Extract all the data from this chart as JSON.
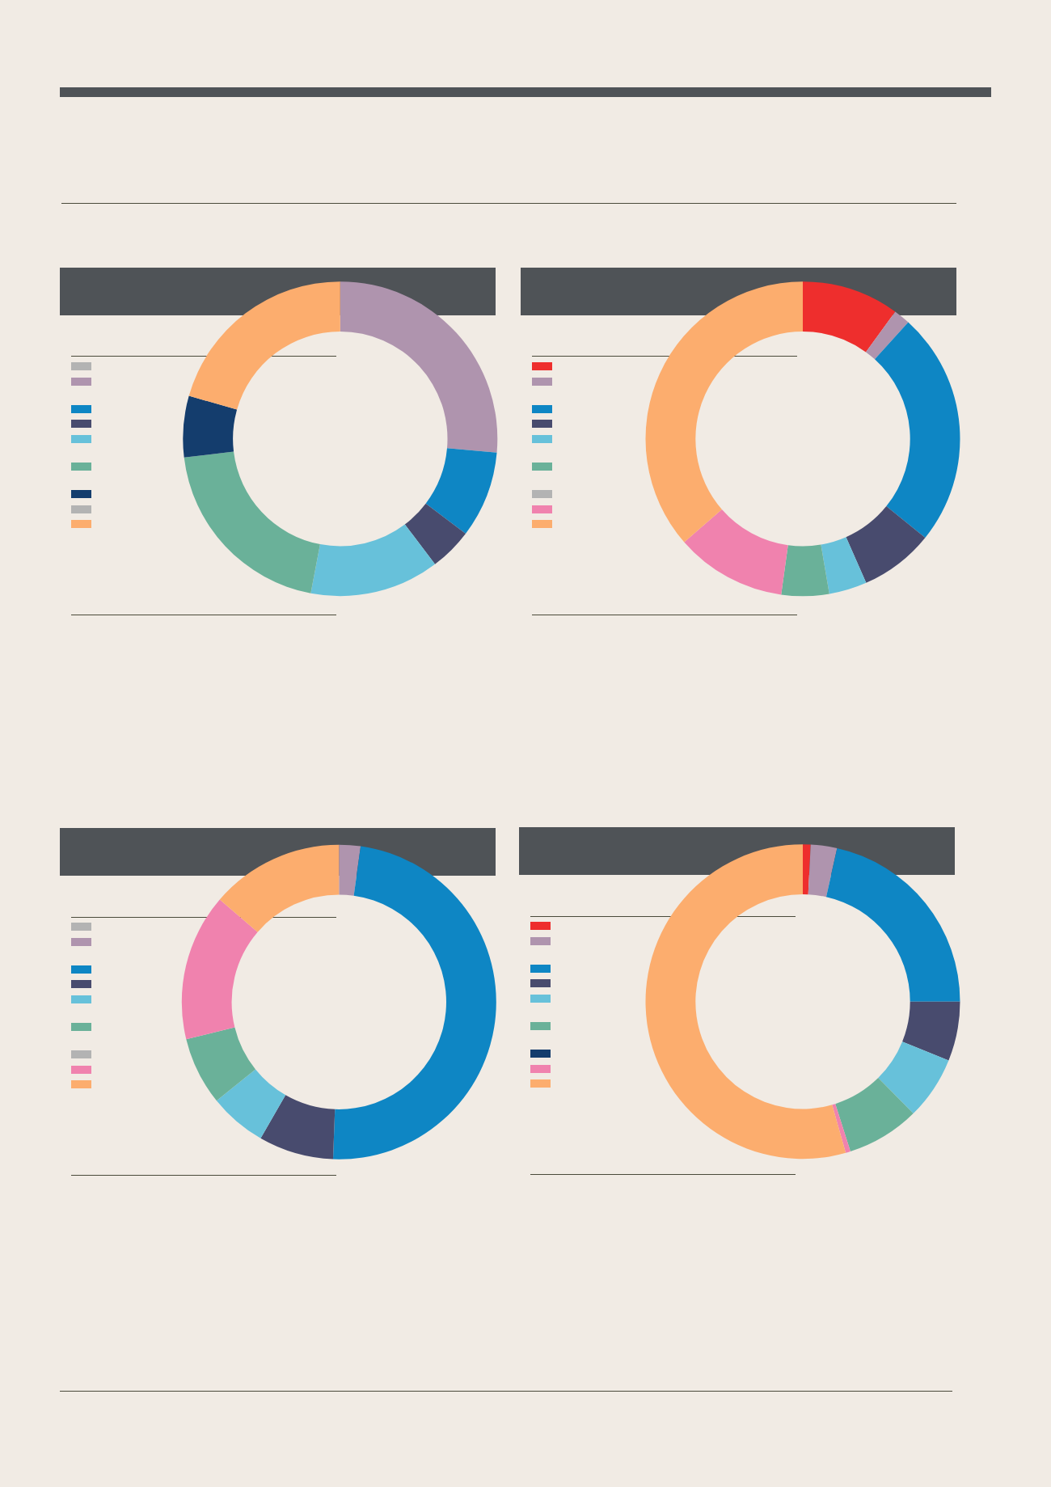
{
  "chart_data": [
    {
      "type": "donut",
      "categories": [
        null,
        null,
        null,
        null,
        null,
        null,
        null,
        null,
        null
      ],
      "values": [
        0,
        26.4,
        8.9,
        4.4,
        13.3,
        20.1,
        6.3,
        0,
        20.6
      ],
      "colors": [
        "#b3b3b3",
        "#af94ae",
        "#0e86c4",
        "#484b6e",
        "#67c1da",
        "#6ab199",
        "#143d6d",
        "#b3b3b3",
        "#fcad6e"
      ]
    },
    {
      "type": "donut",
      "categories": [
        null,
        null,
        null,
        null,
        null,
        null,
        null,
        null,
        null
      ],
      "values": [
        10.0,
        1.7,
        24.1,
        7.6,
        3.9,
        4.9,
        0,
        11.4,
        36.4
      ],
      "colors": [
        "#ee2e2d",
        "#af94ae",
        "#0e86c4",
        "#484b6e",
        "#67c1da",
        "#6ab199",
        "#b3b3b3",
        "#f082ae",
        "#fcad6e"
      ]
    },
    {
      "type": "donut",
      "categories": [
        null,
        null,
        null,
        null,
        null,
        null,
        null,
        null,
        null
      ],
      "values": [
        0,
        2.2,
        48.4,
        7.7,
        5.9,
        7.0,
        0,
        15.1,
        13.7
      ],
      "colors": [
        "#b3b3b3",
        "#af94ae",
        "#0e86c4",
        "#484b6e",
        "#67c1da",
        "#6ab199",
        "#b3b3b3",
        "#f082ae",
        "#fcad6e"
      ]
    },
    {
      "type": "donut",
      "categories": [
        null,
        null,
        null,
        null,
        null,
        null,
        null,
        null,
        null
      ],
      "values": [
        0.8,
        2.7,
        21.5,
        6.1,
        6.5,
        7.5,
        0,
        0.5,
        54.4
      ],
      "colors": [
        "#ee2e2d",
        "#af94ae",
        "#0e86c4",
        "#484b6e",
        "#67c1da",
        "#6ab199",
        "#143d6d",
        "#f082ae",
        "#fcad6e"
      ]
    }
  ]
}
